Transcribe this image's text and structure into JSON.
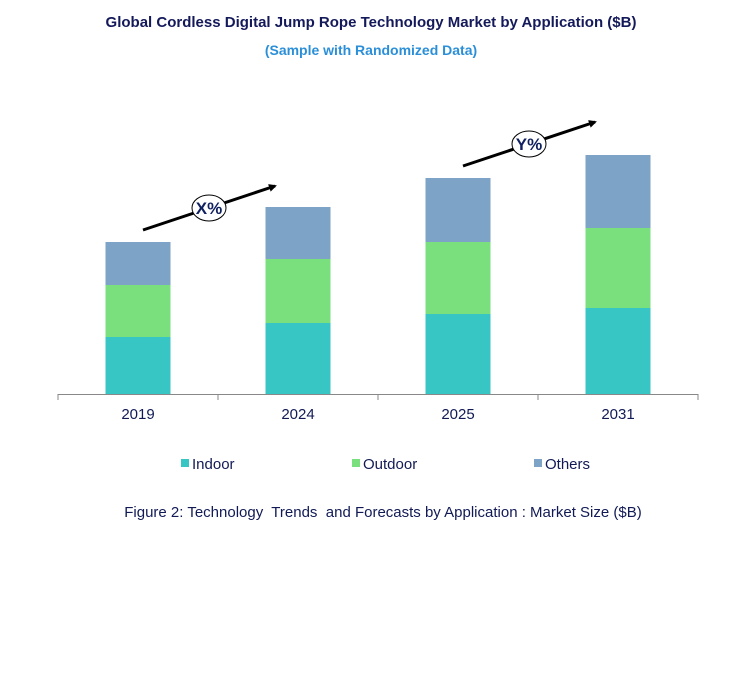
{
  "chart_data": {
    "type": "bar",
    "stacked": true,
    "title": "Global Cordless Digital Jump Rope Technology Market by Application ($B)",
    "subtitle": "(Sample with Randomized Data)",
    "caption": "Figure 2: Technology  Trends  and Forecasts by Application : Market Size ($B)",
    "categories": [
      "2019",
      "2024",
      "2025",
      "2031"
    ],
    "series": [
      {
        "name": "Indoor",
        "color": "#37c6c3",
        "values": [
          5.7,
          7.1,
          8.0,
          8.6
        ]
      },
      {
        "name": "Outdoor",
        "color": "#7ae07d",
        "values": [
          5.2,
          6.4,
          7.2,
          8.0
        ]
      },
      {
        "name": "Others",
        "color": "#7da3c7",
        "values": [
          4.3,
          5.2,
          6.4,
          7.3
        ]
      }
    ],
    "annotations": [
      {
        "label": "X%",
        "from": "2019",
        "to": "2024"
      },
      {
        "label": "Y%",
        "from": "2025",
        "to": "2031"
      }
    ],
    "ylim": [
      0,
      29
    ],
    "y_axis_visible": false,
    "grid": false,
    "legend_position": "bottom",
    "colors": {
      "title": "#14195a",
      "subtitle": "#2a8fd8",
      "axis": "#888888"
    }
  }
}
